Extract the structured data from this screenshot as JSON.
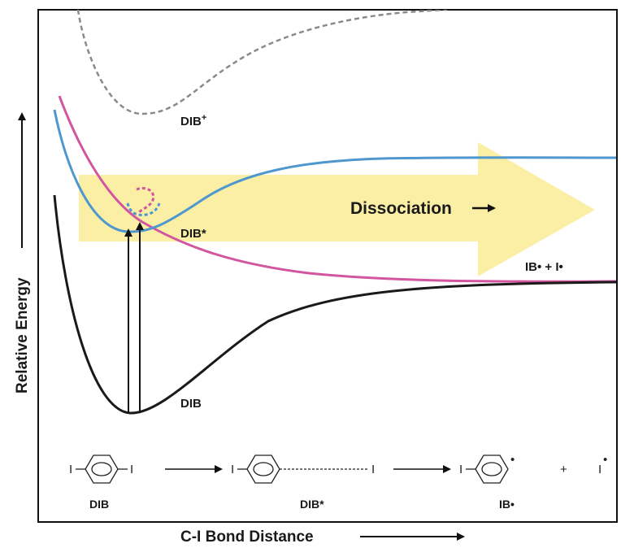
{
  "axes": {
    "x_title": "C-I Bond Distance",
    "y_title": "Relative Energy"
  },
  "labels": {
    "cation": "DIB",
    "cation_sup": "+",
    "excited": "DIB*",
    "ground": "DIB",
    "products": "IB• + I•",
    "dissociation": "Dissociation"
  },
  "scheme": {
    "mol1": "DIB",
    "mol2": "DIB*",
    "mol3": "IB•",
    "iodine": "I",
    "plus": "+",
    "radical_dot": "•"
  },
  "colors": {
    "ground_curve": "#1a1a1a",
    "excited_curve": "#4f97cf",
    "repulsive_curve": "#d2559f",
    "cation_curve": "#8a8a8a",
    "arrow_fill": "#fbefa6"
  }
}
